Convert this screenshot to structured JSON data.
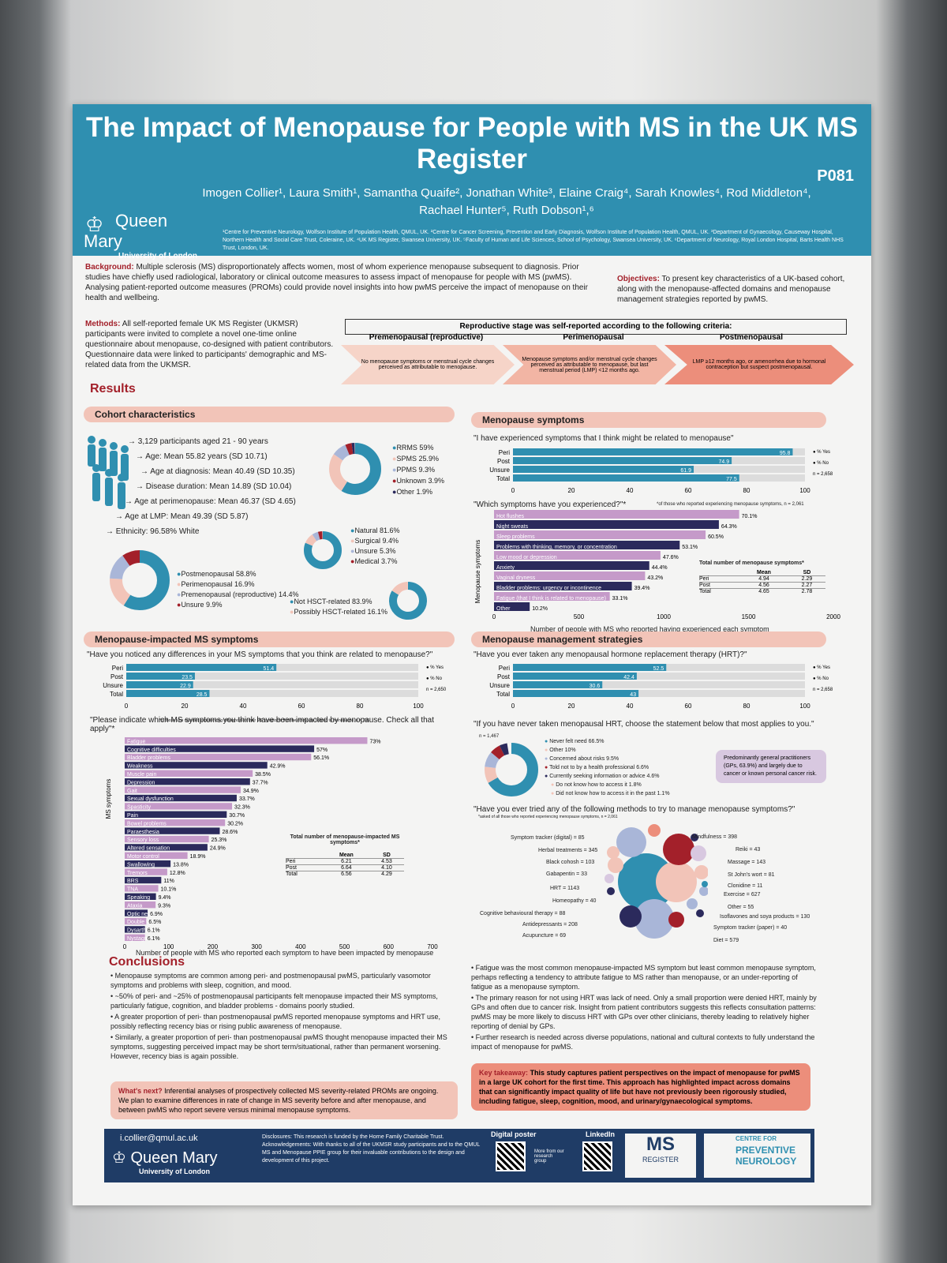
{
  "poster": {
    "title": "The Impact of Menopause for People with MS in the UK MS Register",
    "code": "P081",
    "authors": "Imogen Collier¹, Laura Smith¹, Samantha Quaife², Jonathan White³, Elaine Craig⁴, Sarah Knowles⁴, Rod Middleton⁴, Rachael Hunter⁵, Ruth Dobson¹,⁶",
    "institution": "Queen Mary",
    "institution_sub": "University of London",
    "affiliations": "¹Centre for Preventive Neurology, Wolfson Institute of Population Health, QMUL, UK. ²Centre for Cancer Screening, Prevention and Early Diagnosis, Wolfson Institute of Population Health, QMUL, UK. ³Department of Gynaecology, Causeway Hospital, Northern Health and Social Care Trust, Coleraine, UK. ⁴UK MS Register, Swansea University, UK. ⁵Faculty of Human and Life Sciences, School of Psychology, Swansea University, UK. ⁶Department of Neurology, Royal London Hospital, Barts Health NHS Trust, London, UK.",
    "background_label": "Background:",
    "background": "Multiple sclerosis (MS) disproportionately affects women, most of whom experience menopause subsequent to diagnosis. Prior studies have chiefly used radiological, laboratory or clinical outcome measures to assess impact of menopause for people with MS (pwMS). Analysing patient-reported outcome measures (PROMs) could provide novel insights into how pwMS perceive the impact of menopause on their health and wellbeing.",
    "objectives_label": "Objectives:",
    "objectives": "To present key characteristics of a UK-based cohort, along with the menopause-affected domains and menopause management strategies reported by pwMS.",
    "methods_label": "Methods:",
    "methods": "All self-reported female UK MS Register (UKMSR) participants were invited to complete a novel one-time online questionnaire about menopause, co-designed with patient contributors. Questionnaire data were linked to participants' demographic and MS-related data from the UKMSR.",
    "repro_title": "Reproductive stage was self-reported according to the following criteria:",
    "stages": [
      {
        "name": "Premenopausal (reproductive)",
        "desc": "No menopause symptoms or menstrual cycle changes perceived as attributable to menopause."
      },
      {
        "name": "Perimenopausal",
        "desc": "Menopause symptoms and/or menstrual cycle changes perceived as attributable to menopause, but last menstrual period (LMP) <12 months ago."
      },
      {
        "name": "Postmenopausal",
        "desc": "LMP ≥12 months ago, or amenorrhea due to hormonal contraception but suspect postmenopausal."
      }
    ],
    "results": "Results",
    "cohort": {
      "title": "Cohort characteristics",
      "lines": [
        "→ 3,129 participants aged 21 - 90 years",
        "→ Age: Mean 55.82 years (SD 10.71)",
        "→ Age at diagnosis: Mean 40.49 (SD 10.35)",
        "→ Disease duration: Mean 14.89 (SD 10.04)",
        "→ Age at perimenopause: Mean 46.37 (SD 4.65)",
        "→ Age at LMP: Mean 49.39 (SD 5.87)",
        "→ Ethnicity: 96.58% White"
      ],
      "ms_type": [
        "RRMS 59%",
        "SPMS 25.9%",
        "PPMS 9.3%",
        "Unknown 3.9%",
        "Other 1.9%"
      ],
      "stage": [
        "Postmenopausal 58.8%",
        "Perimenopausal 16.9%",
        "Premenopausal (reproductive) 14.4%",
        "Unsure 9.9%"
      ],
      "type": [
        "Natural 81.6%",
        "Surgical 9.4%",
        "Unsure 5.3%",
        "Medical 3.7%"
      ],
      "hsct": [
        "Not HSCT-related 83.9%",
        "Possibly HSCT-related 16.1%"
      ]
    },
    "menosym": {
      "title": "Menopause symptoms",
      "q1": "\"I have experienced symptoms that I think might be related to menopause\"",
      "q2": "\"Which symptoms have you experienced?\"*",
      "q2_note": "*of those who reported experiencing menopause symptoms, n = 2,061",
      "ylabel": "Menopause symptoms",
      "xlabel": "Number of people with MS who reported having experienced each symptom",
      "table_title": "Total number of menopause symptoms*",
      "n": "n = 2,658"
    },
    "msimpact": {
      "title": "Menopause-impacted MS symptoms",
      "q1": "\"Have you noticed any differences in your MS symptoms that you think are related to menopause?\"",
      "q2": "\"Please indicate which MS symptoms you think have been impacted by menopause. Check all that apply\"*",
      "q2_note": "*of those who reported experiencing differences in their MS symptoms that they think are related to menopause, n = 756",
      "ylabel": "MS symptoms",
      "xlabel": "Number of people with MS who reported each symptom to have been impacted by menopause",
      "table_title": "Total number of menopause-impacted MS symptoms*",
      "n": "n = 2,650"
    },
    "mgmt": {
      "title": "Menopause management strategies",
      "q1": "\"Have you ever taken any menopausal hormone replacement therapy (HRT)?\"",
      "q2": "\"If you have never taken menopausal HRT, choose the statement below that most applies to you.\"",
      "q2_n": "n = 1,467",
      "reasons": [
        "Never felt need 66.5%",
        "Other 10%",
        "Concerned about risks 9.5%",
        "Told not to by a health professional 6.6%",
        "Currently seeking information or advice 4.6%",
        "Do not know how to access it 1.8%",
        "Did not know how to access it in the past 1.1%"
      ],
      "callout": "Predominantly general practitioners (GPs, 63.9%) and largely due to cancer or known personal cancer risk.",
      "q3": "\"Have you ever tried any of the following methods to try to manage menopause symptoms?\"",
      "q3_note": "*asked of all those who reported experiencing menopause symptoms, n = 2,061",
      "n": "n = 2,658",
      "methods": [
        "Symptom tracker (digital) = 85",
        "Herbal treatments = 345",
        "Black cohosh = 103",
        "Gabapentin = 33",
        "HRT = 1143",
        "Homeopathy = 40",
        "Cognitive behavioural therapy = 88",
        "Antidepressants = 208",
        "Acupuncture = 69",
        "Mindfulness = 398",
        "Reiki = 43",
        "Massage = 143",
        "St John's wort = 81",
        "Clonidine = 11",
        "Exercise = 627",
        "Other = 55",
        "Isoflavones and soya products = 130",
        "Symptom tracker (paper) = 40",
        "Diet = 579"
      ]
    },
    "conclusions": {
      "title": "Conclusions",
      "left": [
        "Menopause symptoms are common among peri- and postmenopausal pwMS, particularly vasomotor symptoms and problems with sleep, cognition, and mood.",
        "~50% of peri- and ~25% of postmenopausal participants felt menopause impacted their MS symptoms, particularly fatigue, cognition, and bladder problems - domains poorly studied.",
        "A greater proportion of peri- than postmenopausal pwMS reported menopause symptoms and HRT use, possibly reflecting recency bias or rising public awareness of menopause.",
        "Similarly, a greater proportion of peri- than postmenopausal pwMS thought menopause impacted their MS symptoms, suggesting perceived impact may be short term/situational, rather than permanent worsening. However, recency bias is again possible."
      ],
      "right": [
        "Fatigue was the most common menopause-impacted MS symptom but least common menopause symptom, perhaps reflecting a tendency to attribute fatigue to MS rather than menopause, or an under-reporting of fatigue as a menopause symptom.",
        "The primary reason for not using HRT was lack of need. Only a small proportion were denied HRT, mainly by GPs and often due to cancer risk. Insight from patient contributors suggests this reflects consultation patterns: pwMS may be more likely to discuss HRT with GPs over other clinicians, thereby leading to relatively higher reporting of denial by GPs.",
        "Further research is needed across diverse populations, national and cultural contexts to fully understand the impact of menopause for pwMS."
      ],
      "next_label": "What's next?",
      "next": "Inferential analyses of prospectively collected MS severity-related PROMs are ongoing. We plan to examine differences in rate of change in MS severity before and after menopause, and between pwMS who report severe versus minimal menopause symptoms.",
      "key_label": "Key takeaway:",
      "key": "This study captures patient perspectives on the impact of menopause for pwMS in a large UK cohort for the first time. This approach has highlighted impact across domains that can significantly impact quality of life but have not previously been rigorously studied, including fatigue, sleep, cognition, mood, and urinary/gynaecological symptoms."
    },
    "footer": {
      "email": "i.collier@qmul.ac.uk",
      "disclosures": "Disclosures: This research is funded by the Horne Family Charitable Trust. Acknowledgements: With thanks to all of the UKMSR study participants and to the QMUL MS and Menopause PPIE group for their invaluable contributions to the design and development of this project.",
      "digital_poster": "Digital poster",
      "more": "More from our research group",
      "linkedin": "LinkedIn",
      "ms": "MS",
      "register": "REGISTER",
      "cpn1": "CENTRE FOR",
      "cpn2": "PREVENTIVE",
      "cpn3": "NEUROLOGY"
    }
  },
  "chart_data": [
    {
      "type": "bar",
      "title": "\"I have experienced symptoms that I think might be related to menopause\"",
      "categories": [
        "Peri",
        "Post",
        "Unsure",
        "Total"
      ],
      "series": [
        {
          "name": "% Yes",
          "values": [
            95.8,
            74.9,
            61.9,
            77.5
          ]
        },
        {
          "name": "% No",
          "values": [
            4.2,
            25.1,
            38.1,
            22.5
          ]
        }
      ],
      "xlim": [
        0,
        100
      ],
      "ticks": [
        0,
        20,
        40,
        60,
        80,
        100
      ]
    },
    {
      "type": "bar",
      "categories": [
        "Hot flushes",
        "Night sweats",
        "Sleep problems",
        "Problems with thinking, memory, or concentration",
        "Low mood or depression",
        "Anxiety",
        "Vaginal dryness",
        "Bladder problems: urgency or incontinence",
        "Fatigue (that I think is related to menopause)",
        "Other"
      ],
      "values_pct": [
        70.1,
        64.3,
        60.5,
        53.1,
        47.6,
        44.4,
        43.2,
        39.4,
        33.1,
        10.2
      ],
      "xlim": [
        0,
        2000
      ],
      "ticks": [
        0,
        500,
        1000,
        1500,
        2000
      ],
      "table": {
        "cols": [
          "",
          "Mean",
          "SD"
        ],
        "rows": [
          [
            "Peri",
            "4.94",
            "2.29"
          ],
          [
            "Post",
            "4.56",
            "2.27"
          ],
          [
            "Total",
            "4.65",
            "2.78"
          ]
        ]
      }
    },
    {
      "type": "bar",
      "title": "\"Have you noticed any differences in your MS symptoms that you think are related to menopause?\"",
      "categories": [
        "Peri",
        "Post",
        "Unsure",
        "Total"
      ],
      "series": [
        {
          "name": "% Yes",
          "values": [
            51.4,
            23.5,
            22.9,
            28.5
          ]
        },
        {
          "name": "% No",
          "values": [
            48.6,
            76.5,
            77.1,
            71.5
          ]
        }
      ],
      "xlim": [
        0,
        100
      ],
      "ticks": [
        0,
        20,
        40,
        60,
        80,
        100
      ]
    },
    {
      "type": "bar",
      "categories": [
        "Fatigue",
        "Cognitive difficulties",
        "Bladder problems",
        "Weakness",
        "Muscle pain",
        "Depression",
        "Gait",
        "Sexual dysfunction",
        "Spasticity",
        "Pain",
        "Bowel problems",
        "Paraesthesia",
        "Sensory loss",
        "Altered sensation",
        "Motor control",
        "Swallowing",
        "Tremors",
        "BRS",
        "TNA",
        "Speaking",
        "Ataxia",
        "Optic neuritis",
        "Double vision",
        "Dysarthria",
        "Nystagmus"
      ],
      "values_pct": [
        73,
        57,
        56.1,
        42.9,
        38.5,
        37.7,
        34.9,
        33.7,
        32.3,
        30.7,
        30.2,
        28.6,
        25.3,
        24.9,
        18.9,
        13.8,
        12.8,
        11,
        10.1,
        9.4,
        9.3,
        6.9,
        6.5,
        6.1,
        6.1
      ],
      "xlim": [
        0,
        700
      ],
      "ticks": [
        0,
        100,
        200,
        300,
        400,
        500,
        600,
        700
      ],
      "table": {
        "cols": [
          "",
          "Mean",
          "SD"
        ],
        "rows": [
          [
            "Peri",
            "6.21",
            "4.53"
          ],
          [
            "Post",
            "6.64",
            "4.10"
          ],
          [
            "Total",
            "6.56",
            "4.29"
          ]
        ]
      }
    },
    {
      "type": "bar",
      "title": "\"Have you ever taken any menopausal hormone replacement therapy (HRT)?\"",
      "categories": [
        "Peri",
        "Post",
        "Unsure",
        "Total"
      ],
      "series": [
        {
          "name": "% Yes",
          "values": [
            52.5,
            42.4,
            30.6,
            43
          ]
        },
        {
          "name": "% No",
          "values": [
            47.5,
            57.6,
            69.4,
            57
          ]
        }
      ],
      "xlim": [
        0,
        100
      ],
      "ticks": [
        0,
        20,
        40,
        60,
        80,
        100
      ]
    }
  ]
}
